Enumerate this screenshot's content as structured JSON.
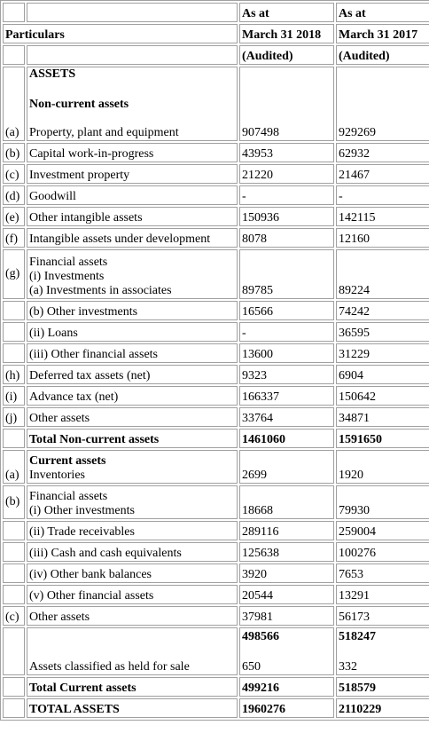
{
  "header": {
    "col_label": "Particulars",
    "col1_line1": "As at",
    "col1_line2": "March 31 2018",
    "col1_line3": "(Audited)",
    "col2_line1": "As at",
    "col2_line2": "March 31 2017",
    "col2_line3": "(Audited)"
  },
  "assets_heading": "ASSETS",
  "noncurrent_heading": "Non-current assets",
  "noncurrent": [
    {
      "idx": "(a)",
      "label": "Property, plant and equipment",
      "v2018": "907498",
      "v2017": "929269"
    },
    {
      "idx": "(b)",
      "label": "Capital work-in-progress",
      "v2018": "43953",
      "v2017": "62932"
    },
    {
      "idx": "(c)",
      "label": "Investment property",
      "v2018": "21220",
      "v2017": "21467"
    },
    {
      "idx": "(d)",
      "label": "Goodwill",
      "v2018": "-",
      "v2017": "-"
    },
    {
      "idx": "(e)",
      "label": "Other intangible assets",
      "v2018": "150936",
      "v2017": "142115"
    },
    {
      "idx": "(f)",
      "label": "Intangible assets under development",
      "v2018": "8078",
      "v2017": "12160"
    }
  ],
  "nc_financial": {
    "idx": "(g)",
    "line1": "Financial assets",
    "line2": "(i) Investments",
    "line3": "(a) Investments in associates",
    "v2018": "89785",
    "v2017": "89224"
  },
  "noncurrent2": [
    {
      "idx": "",
      "label": "(b) Other investments",
      "v2018": "16566",
      "v2017": "74242"
    },
    {
      "idx": "",
      "label": "(ii) Loans",
      "v2018": "-",
      "v2017": "36595"
    },
    {
      "idx": "",
      "label": "(iii) Other financial assets",
      "v2018": "13600",
      "v2017": "31229"
    },
    {
      "idx": "(h)",
      "label": "Deferred tax assets (net)",
      "v2018": "9323",
      "v2017": "6904"
    },
    {
      "idx": "(i)",
      "label": "Advance tax (net)",
      "v2018": "166337",
      "v2017": "150642"
    },
    {
      "idx": "(j)",
      "label": "Other assets",
      "v2018": "33764",
      "v2017": "34871"
    }
  ],
  "total_noncurrent": {
    "label": "Total Non-current assets",
    "v2018": "1461060",
    "v2017": "1591650"
  },
  "current_heading": "Current assets",
  "inventories": {
    "idx": "(a)",
    "label": "Inventories",
    "v2018": "2699",
    "v2017": "1920"
  },
  "cur_financial": {
    "idx": "(b)",
    "line1": "Financial assets",
    "line2": "(i) Other investments",
    "v2018": "18668",
    "v2017": "79930"
  },
  "current2": [
    {
      "idx": "",
      "label": "(ii) Trade receivables",
      "v2018": "289116",
      "v2017": "259004"
    },
    {
      "idx": "",
      "label": "(iii) Cash and cash equivalents",
      "v2018": "125638",
      "v2017": "100276"
    },
    {
      "idx": "",
      "label": "(iv) Other bank balances",
      "v2018": "3920",
      "v2017": "7653"
    },
    {
      "idx": "",
      "label": "(v) Other financial assets",
      "v2018": "20544",
      "v2017": "13291"
    },
    {
      "idx": "(c)",
      "label": "Other assets",
      "v2018": "37981",
      "v2017": "56173"
    }
  ],
  "held_for_sale": {
    "subtotal2018": "498566",
    "subtotal2017": "518247",
    "label": "Assets classified as held for sale",
    "v2018": "650",
    "v2017": "332"
  },
  "total_current": {
    "label": "Total Current assets",
    "v2018": "499216",
    "v2017": "518579"
  },
  "total_assets": {
    "label": "TOTAL ASSETS",
    "v2018": "1960276",
    "v2017": "2110229"
  }
}
